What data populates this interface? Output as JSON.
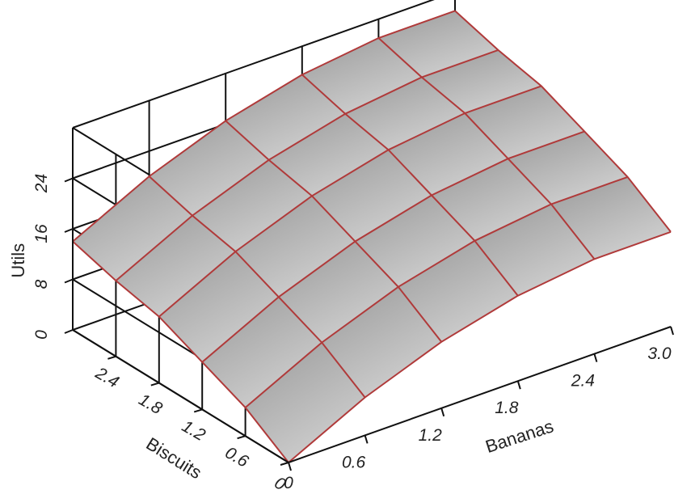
{
  "chart_data": {
    "type": "surface3d",
    "title": "",
    "xlabel": "Bananas",
    "ylabel": "Biscuits",
    "zlabel": "Utils",
    "x_ticks": [
      "0",
      "0.6",
      "1.2",
      "1.8",
      "2.4",
      "3.0"
    ],
    "y_ticks": [
      "0",
      "0.6",
      "1.2",
      "1.8",
      "2.4"
    ],
    "z_ticks": [
      "0",
      "8",
      "16",
      "24"
    ],
    "x_range": [
      0,
      3
    ],
    "y_range": [
      0,
      3
    ],
    "z_range": [
      0,
      32
    ],
    "x_grid": [
      0,
      0.6,
      1.2,
      1.8,
      2.4,
      3.0
    ],
    "y_grid": [
      0,
      0.6,
      1.2,
      1.8,
      2.4,
      3.0
    ],
    "z_values": [
      [
        0.0,
        6.0,
        10.5,
        13.5,
        15.0,
        15.0
      ],
      [
        4.5,
        10.5,
        15.0,
        18.0,
        19.5,
        19.5
      ],
      [
        7.5,
        13.5,
        18.0,
        21.0,
        22.5,
        22.5
      ],
      [
        10.5,
        16.5,
        21.0,
        24.0,
        25.5,
        25.5
      ],
      [
        12.0,
        18.0,
        22.5,
        25.5,
        27.0,
        27.0
      ],
      [
        14.0,
        20.0,
        24.5,
        27.5,
        29.0,
        29.0
      ]
    ],
    "surface_color": "#b4b4b4",
    "grid_color": "#b03a3a",
    "wall_color": "#111111",
    "grid": true
  }
}
